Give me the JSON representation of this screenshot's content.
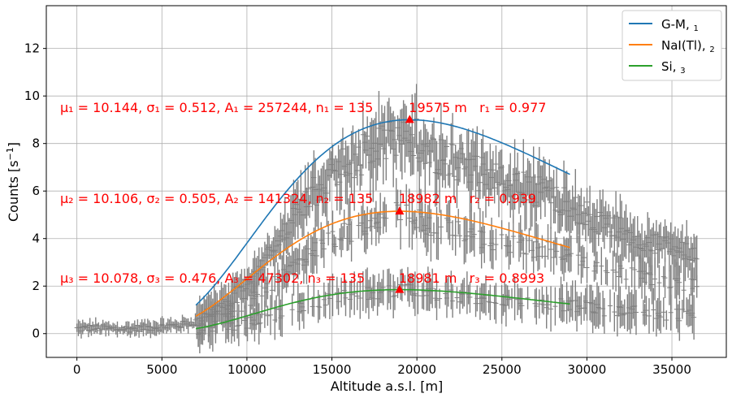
{
  "chart_data": {
    "type": "scatter",
    "title": "",
    "xlabel": "Altitude a.s.l. [m]",
    "ylabel": "Counts [s$^{-1}$]",
    "ylabel_base": "Counts [s",
    "ylabel_sup": "−1",
    "ylabel_close": "]",
    "xlim": [
      -1800,
      38200
    ],
    "ylim": [
      -1.0,
      13.8
    ],
    "xticks": [
      0,
      5000,
      10000,
      15000,
      20000,
      25000,
      30000,
      35000
    ],
    "yticks": [
      0,
      2,
      4,
      6,
      8,
      10,
      12
    ],
    "grid": true,
    "legend": {
      "placement": "top-right",
      "entries": [
        {
          "label": "G-M,",
          "sub": "1",
          "color": "#1f77b4"
        },
        {
          "label": "NaI(Tl),",
          "sub": "2",
          "color": "#ff7f0e"
        },
        {
          "label": "Si,",
          "sub": "3",
          "color": "#2ca02c"
        }
      ]
    },
    "measurements": {
      "name": "",
      "color": "#808080",
      "description_points": [
        [
          0,
          0.2
        ],
        [
          1000,
          0.25
        ],
        [
          2000,
          0.2
        ],
        [
          3000,
          0.2
        ],
        [
          4000,
          0.25
        ],
        [
          5000,
          0.3
        ],
        [
          6000,
          0.35
        ],
        [
          7000,
          0.5
        ],
        [
          8000,
          1.0
        ],
        [
          9000,
          1.4
        ],
        [
          10000,
          2.2
        ],
        [
          11000,
          3.0
        ],
        [
          12000,
          4.0
        ],
        [
          13000,
          5.0
        ],
        [
          14000,
          6.0
        ],
        [
          15000,
          6.8
        ],
        [
          16000,
          7.2
        ],
        [
          17000,
          7.6
        ],
        [
          18000,
          8.0
        ],
        [
          19000,
          8.4
        ],
        [
          20000,
          8.2
        ],
        [
          21000,
          7.6
        ],
        [
          22000,
          7.2
        ],
        [
          23000,
          7.0
        ],
        [
          24000,
          6.6
        ],
        [
          25000,
          6.4
        ],
        [
          26000,
          6.2
        ],
        [
          27000,
          6.0
        ],
        [
          28000,
          5.8
        ],
        [
          29000,
          5.4
        ],
        [
          30000,
          5.0
        ],
        [
          31000,
          4.6
        ],
        [
          32000,
          4.4
        ],
        [
          33000,
          4.0
        ],
        [
          34000,
          3.8
        ],
        [
          35000,
          3.6
        ],
        [
          36000,
          3.4
        ]
      ]
    },
    "series": [
      {
        "name": "G-M, 1",
        "color": "#1f77b4",
        "mu": 10.144,
        "sigma": 0.512,
        "A": 257244,
        "n": 135,
        "x_range": [
          7000,
          29000
        ],
        "peak": {
          "x": 19575,
          "y": 9.0
        },
        "annotation_fit": "μ₁ = 10.144, σ₁ = 0.512, A₁ = 257244, n₁ = 135",
        "annotation_peak": "19575 m   r₁ = 0.977"
      },
      {
        "name": "NaI(Tl), 2",
        "color": "#ff7f0e",
        "mu": 10.106,
        "sigma": 0.505,
        "A": 141324,
        "n": 135,
        "x_range": [
          7000,
          29000
        ],
        "peak": {
          "x": 18982,
          "y": 5.15
        },
        "annotation_fit": "μ₂ = 10.106, σ₂ = 0.505, A₂ = 141324, n₂ = 135",
        "annotation_peak": "18982 m   r₂ = 0.939"
      },
      {
        "name": "Si, 3",
        "color": "#2ca02c",
        "mu": 10.078,
        "sigma": 0.476,
        "A": 47302,
        "n": 135,
        "x_range": [
          7000,
          29000
        ],
        "peak": {
          "x": 18981,
          "y": 1.85
        },
        "annotation_fit": "μ₃ = 10.078, σ₃ = 0.476, A₃ = 47302, n₃ = 135",
        "annotation_peak": "18981 m   r₃ = 0.8993"
      }
    ],
    "annotation_color": "#ff0000"
  }
}
